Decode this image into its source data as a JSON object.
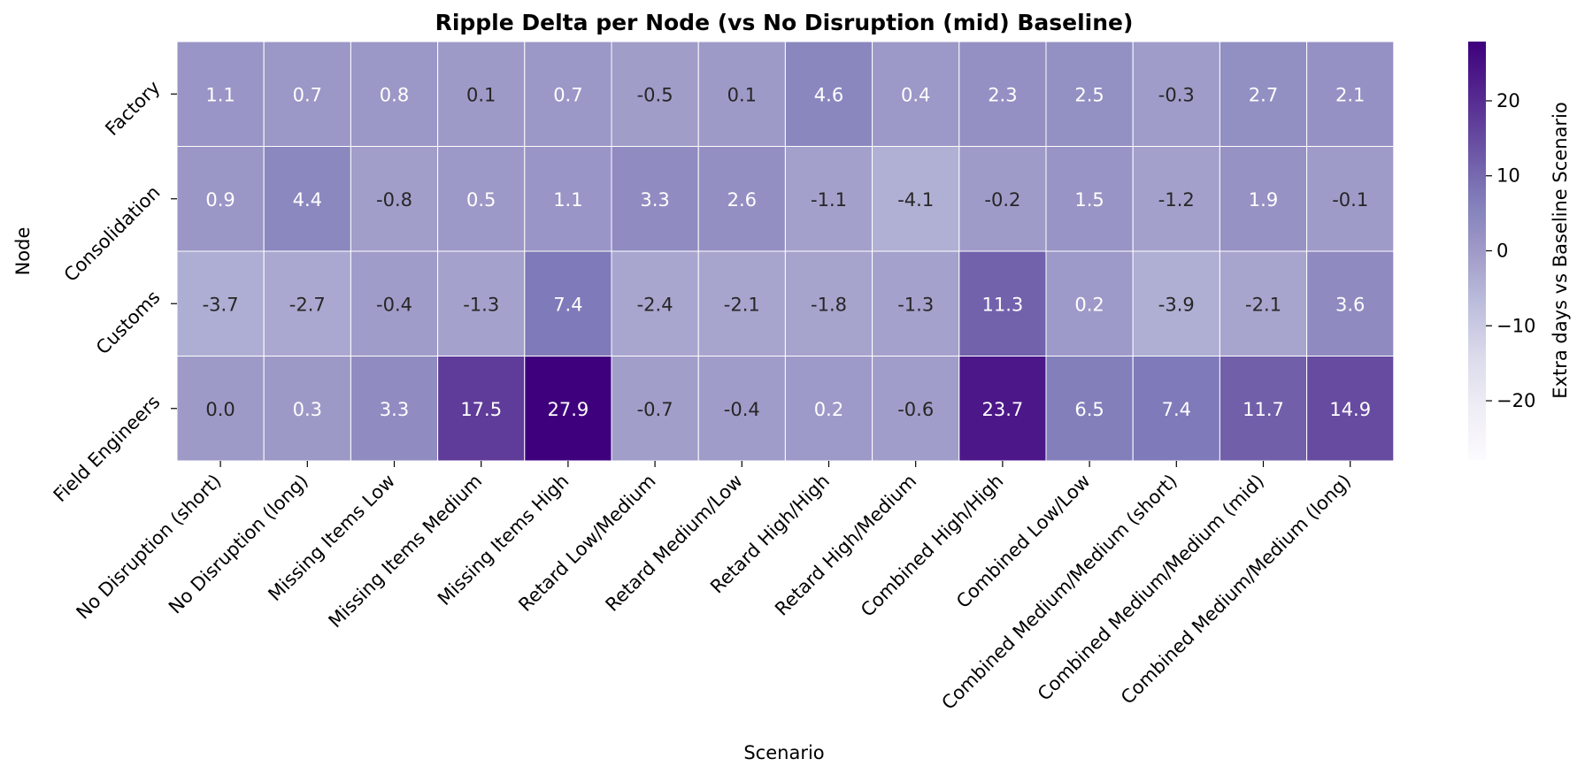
{
  "chart_data": {
    "type": "heatmap",
    "title": "Ripple Delta per Node (vs No Disruption (mid) Baseline)",
    "xlabel": "Scenario",
    "ylabel": "Node",
    "x": [
      "No Disruption (short)",
      "No Disruption (long)",
      "Missing Items Low",
      "Missing Items Medium",
      "Missing Items High",
      "Retard Low/Medium",
      "Retard Medium/Low",
      "Retard High/High",
      "Retard High/Medium",
      "Combined High/High",
      "Combined Low/Low",
      "Combined Medium/Medium (short)",
      "Combined Medium/Medium (mid)",
      "Combined Medium/Medium (long)"
    ],
    "y": [
      "Factory",
      "Consolidation",
      "Customs",
      "Field Engineers"
    ],
    "values": [
      [
        1.1,
        0.7,
        0.8,
        0.1,
        0.7,
        -0.5,
        0.1,
        4.6,
        0.4,
        2.3,
        2.5,
        -0.3,
        2.7,
        2.1
      ],
      [
        0.9,
        4.4,
        -0.8,
        0.5,
        1.1,
        3.3,
        2.6,
        -1.1,
        -4.1,
        -0.2,
        1.5,
        -1.2,
        1.9,
        -0.1
      ],
      [
        -3.7,
        -2.7,
        -0.4,
        -1.3,
        7.4,
        -2.4,
        -2.1,
        -1.8,
        -1.3,
        11.3,
        0.2,
        -3.9,
        -2.1,
        3.6
      ],
      [
        0.0,
        0.3,
        3.3,
        17.5,
        27.9,
        -0.7,
        -0.4,
        0.2,
        -0.6,
        23.7,
        6.5,
        7.4,
        11.7,
        14.9
      ]
    ],
    "colorbar": {
      "label": "Extra days vs Baseline Scenario",
      "range": [
        -27.9,
        27.9
      ],
      "ticks": [
        -20,
        -10,
        0,
        10,
        20
      ],
      "colormap": "Purples",
      "color_low": "#fcfbfd",
      "color_high": "#3f007d"
    },
    "cell_text_dark": "#262626",
    "cell_text_light": "#ffffff"
  }
}
